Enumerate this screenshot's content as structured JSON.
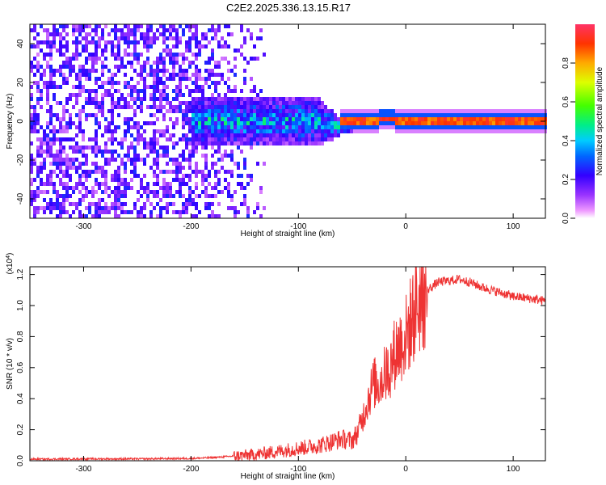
{
  "title": "C2E2.2025.336.13.15.R17",
  "chart_data": [
    {
      "type": "heatmap",
      "xlabel": "Height of straight line (km)",
      "ylabel": "Frequency (Hz)",
      "xlim": [
        -350,
        130
      ],
      "ylim": [
        -50,
        50
      ],
      "xticks": [
        -300,
        -200,
        -100,
        0,
        100
      ],
      "yticks": [
        -40,
        -20,
        0,
        20,
        40
      ],
      "colorbar": {
        "label": "Normalized spectral amplitude",
        "range": [
          0.0,
          1.0
        ],
        "ticks": [
          0.0,
          0.2,
          0.4,
          0.6,
          0.8
        ],
        "tick_labels": [
          "0.0",
          "0.2",
          "0.4",
          "0.6",
          "0.8"
        ]
      },
      "features": [
        {
          "name": "noise",
          "x_range": [
            -350,
            -150
          ],
          "freq_range": [
            -50,
            50
          ],
          "amplitude": 0.15
        },
        {
          "name": "signal-band",
          "x_range": [
            -200,
            -60
          ],
          "freq_center": 0,
          "freq_halfwidth": 10,
          "amplitude": 0.35
        },
        {
          "name": "locked-carrier",
          "x_range": [
            -60,
            130
          ],
          "freq_center": 0,
          "freq_halfwidth": 1.5,
          "amplitude": 0.95
        }
      ]
    },
    {
      "type": "line",
      "xlabel": "Height of straight line (km)",
      "ylabel": "SNR (10 * v/v)",
      "scale_label": "(x10",
      "scale_exponent": "4",
      "scale_close": ")",
      "xlim": [
        -350,
        130
      ],
      "ylim": [
        0,
        1.25
      ],
      "xticks": [
        -300,
        -200,
        -100,
        0,
        100
      ],
      "yticks": [
        0.0,
        0.2,
        0.4,
        0.6,
        0.8,
        1.0,
        1.2
      ],
      "ytick_labels": [
        "0.0",
        "0.2",
        "0.4",
        "0.6",
        "0.8",
        "1.0",
        "1.2"
      ],
      "series": [
        {
          "name": "SNR",
          "color": "#ee3333",
          "x": [
            -350,
            -300,
            -250,
            -200,
            -180,
            -160,
            -140,
            -120,
            -100,
            -80,
            -70,
            -60,
            -50,
            -45,
            -40,
            -35,
            -30,
            -25,
            -20,
            -15,
            -10,
            -5,
            0,
            5,
            10,
            20,
            30,
            40,
            50,
            60,
            70,
            80,
            90,
            100,
            110,
            120,
            130
          ],
          "y": [
            0.01,
            0.012,
            0.012,
            0.015,
            0.02,
            0.03,
            0.04,
            0.06,
            0.08,
            0.1,
            0.12,
            0.14,
            0.13,
            0.18,
            0.28,
            0.4,
            0.5,
            0.5,
            0.55,
            0.6,
            0.7,
            0.75,
            0.8,
            0.9,
            1.0,
            1.1,
            1.15,
            1.16,
            1.17,
            1.15,
            1.12,
            1.1,
            1.08,
            1.06,
            1.05,
            1.04,
            1.03
          ]
        }
      ]
    }
  ]
}
